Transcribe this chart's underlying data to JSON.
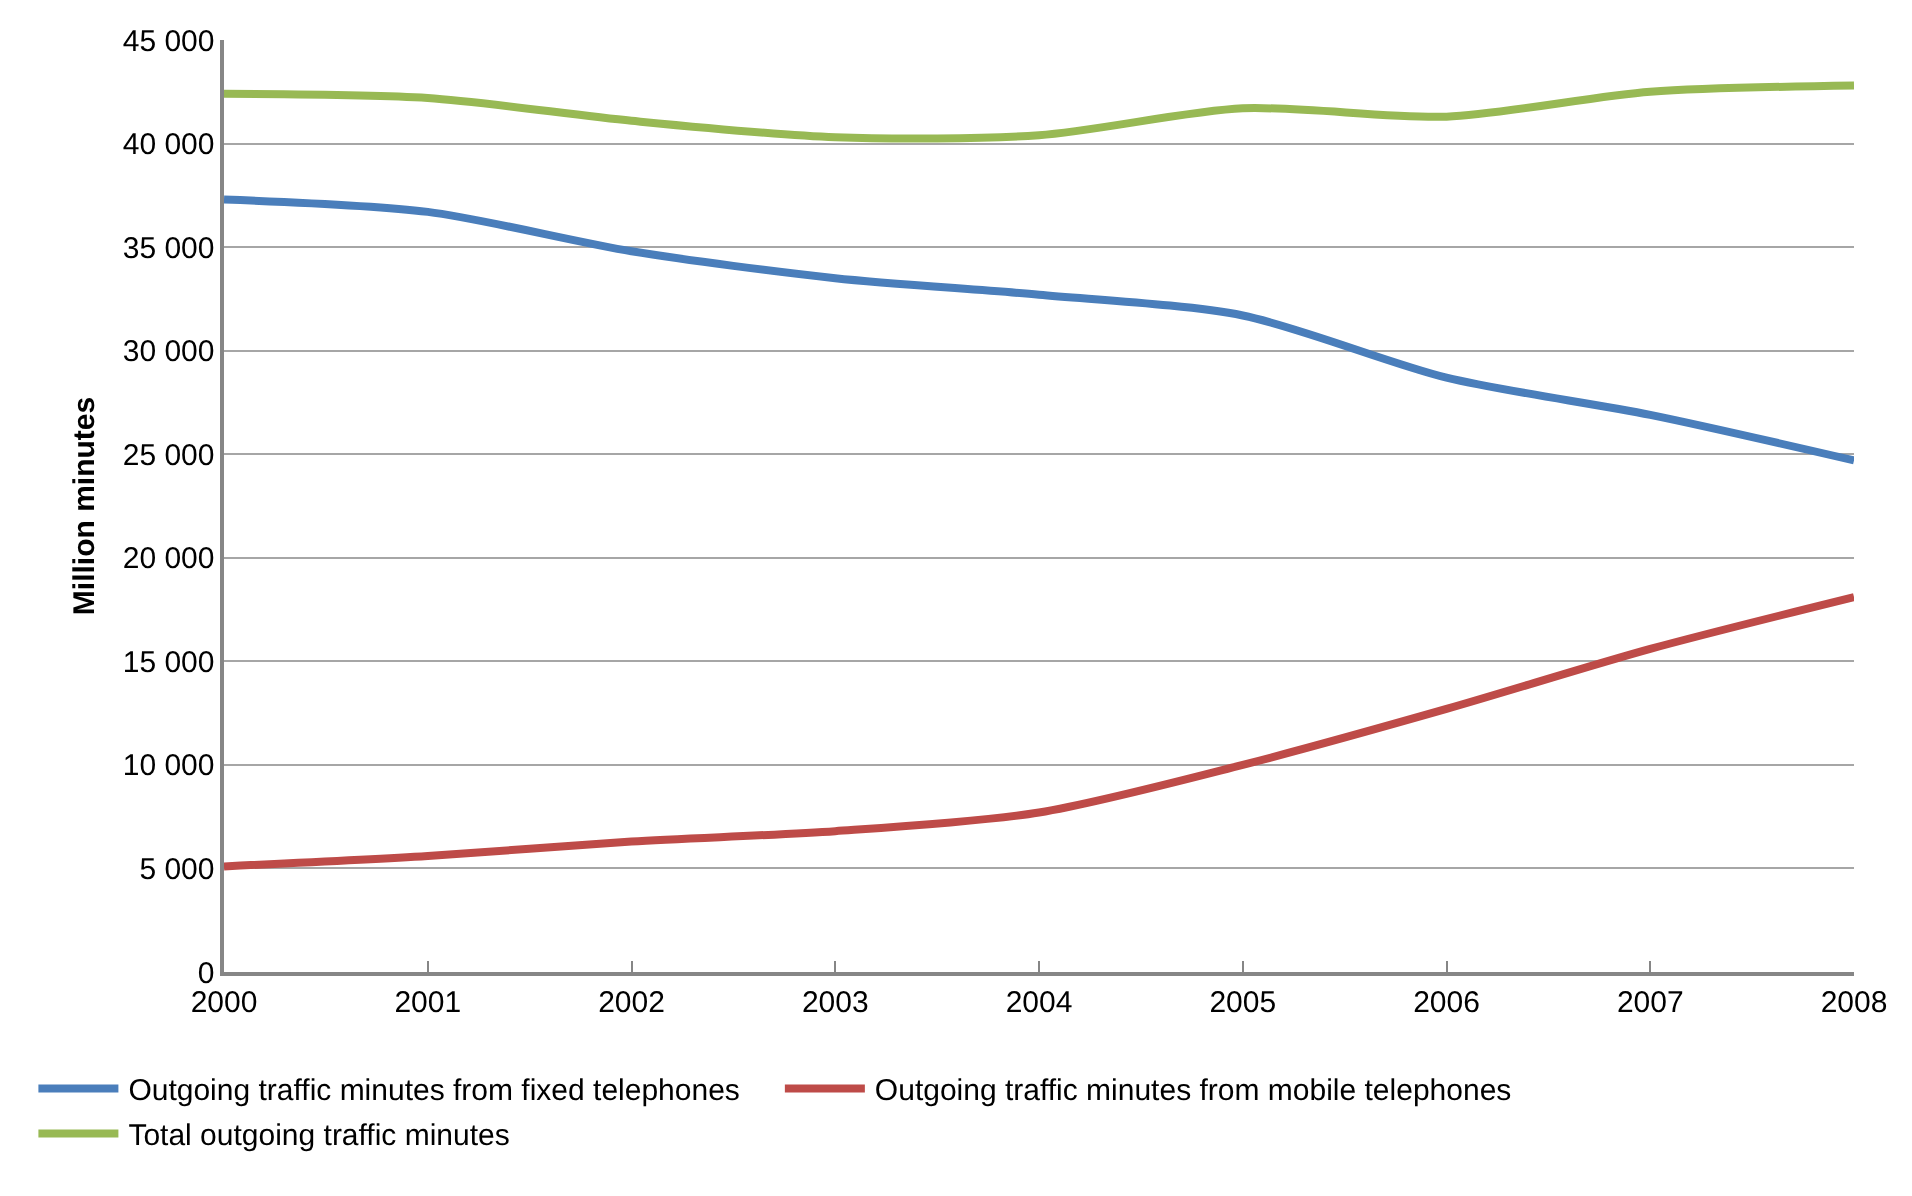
{
  "chart_data": {
    "type": "line",
    "ylabel": "Million minutes",
    "x": [
      2000,
      2001,
      2002,
      2003,
      2004,
      2005,
      2006,
      2007,
      2008
    ],
    "series": [
      {
        "name": "Outgoing traffic minutes from fixed telephones",
        "color": "#4a7ebb",
        "values": [
          37300,
          36700,
          34800,
          33500,
          32700,
          31700,
          28700,
          26900,
          24700
        ]
      },
      {
        "name": "Outgoing traffic minutes from mobile telephones",
        "color": "#be4b48",
        "values": [
          5100,
          5600,
          6300,
          6800,
          7700,
          10000,
          12700,
          15600,
          18100
        ]
      },
      {
        "name": "Total outgoing traffic minutes",
        "color": "#98b954",
        "values": [
          42400,
          42200,
          41100,
          40300,
          40400,
          41700,
          41300,
          42500,
          42800
        ]
      }
    ],
    "xlim": [
      2000,
      2008
    ],
    "xticks": [
      2000,
      2001,
      2002,
      2003,
      2004,
      2005,
      2006,
      2007,
      2008
    ],
    "ylim": [
      0,
      45000
    ],
    "yticks": [
      0,
      {
        "value": 5000,
        "label": "5 000"
      },
      {
        "value": 10000,
        "label": "10 000"
      },
      {
        "value": 15000,
        "label": "15 000"
      },
      {
        "value": 20000,
        "label": "20 000"
      },
      {
        "value": 25000,
        "label": "25 000"
      },
      {
        "value": 30000,
        "label": "30 000"
      },
      {
        "value": 35000,
        "label": "35 000"
      },
      {
        "value": 40000,
        "label": "40 000"
      },
      {
        "value": 45000,
        "label": "45 000"
      }
    ],
    "grid": "y",
    "legend": "bottom",
    "marker": "none",
    "line_style": "solid"
  }
}
